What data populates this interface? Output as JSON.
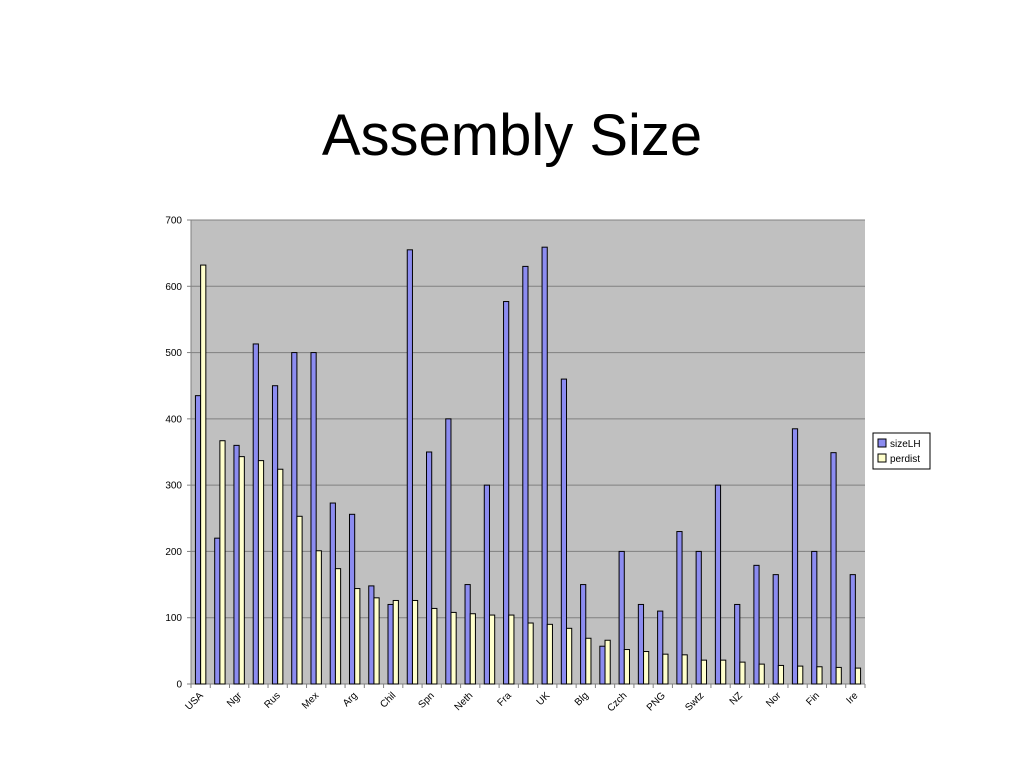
{
  "slide": {
    "title": "Assembly Size"
  },
  "chart_data": {
    "type": "bar",
    "title": "",
    "xlabel": "",
    "ylabel": "",
    "ylim": [
      0,
      700
    ],
    "yticks": [
      0,
      100,
      200,
      300,
      400,
      500,
      600,
      700
    ],
    "grid": true,
    "legend_position": "right",
    "plot_background": "#c0c0c0",
    "categories": [
      "USA",
      "",
      "Ngr",
      "",
      "Rus",
      "",
      "Mex",
      "",
      "Arg",
      "",
      "Chil",
      "",
      "Spn",
      "",
      "Neth",
      "",
      "Fra",
      "",
      "UK",
      "",
      "Blg",
      "",
      "Czch",
      "",
      "PNG",
      "",
      "Swtz",
      "",
      "NZ",
      "",
      "Nor",
      "",
      "Fin",
      "",
      "Ire"
    ],
    "series": [
      {
        "name": "sizeLH",
        "color": "#8c8cf0",
        "values": [
          435,
          220,
          360,
          513,
          450,
          500,
          500,
          273,
          256,
          148,
          120,
          655,
          350,
          400,
          150,
          300,
          577,
          630,
          659,
          460,
          150,
          57,
          200,
          120,
          110,
          230,
          200,
          300,
          120,
          179,
          165,
          385,
          200,
          349,
          165
        ]
      },
      {
        "name": "perdist",
        "color": "#ffffcc",
        "values": [
          632,
          367,
          343,
          337,
          324,
          253,
          201,
          174,
          144,
          130,
          126,
          126,
          114,
          108,
          106,
          104,
          104,
          92,
          90,
          84,
          69,
          66,
          52,
          49,
          45,
          44,
          36,
          36,
          33,
          30,
          28,
          27,
          26,
          25,
          24
        ]
      }
    ]
  }
}
